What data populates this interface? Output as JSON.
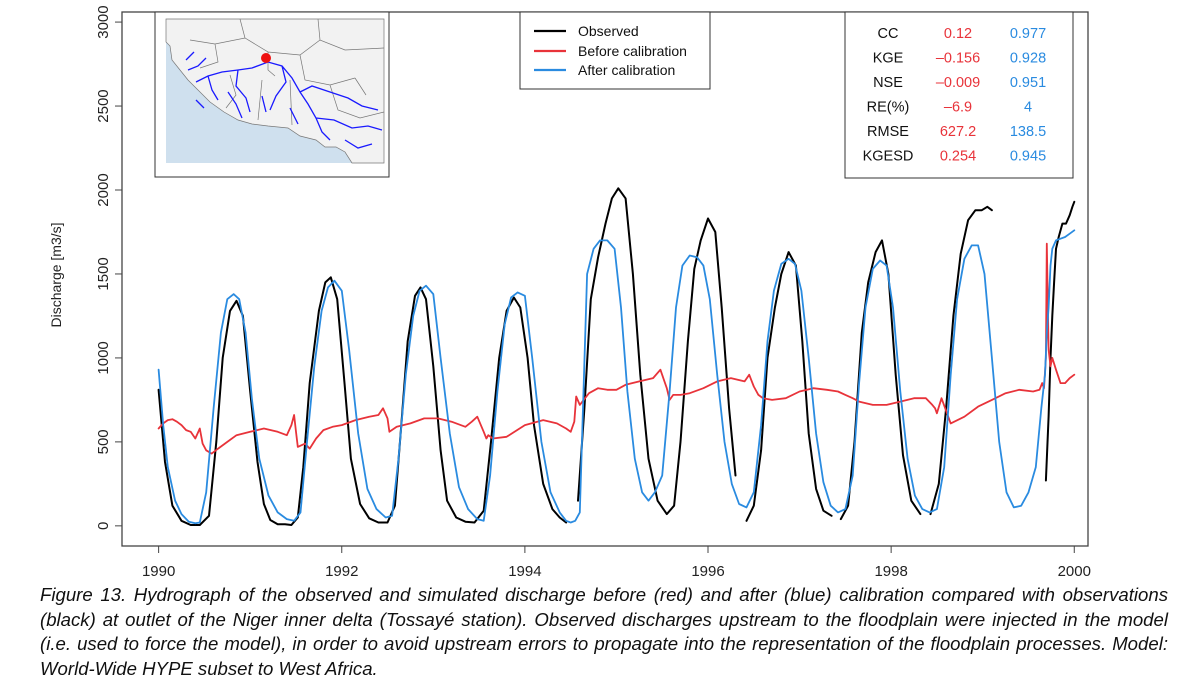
{
  "chart_data": {
    "type": "line",
    "title": "",
    "xlabel": "",
    "ylabel": "Discharge [m3/s]",
    "xlim": [
      1989.6,
      2000.15
    ],
    "ylim": [
      -120,
      3060
    ],
    "x_ticks": [
      "1990",
      "1992",
      "1994",
      "1996",
      "1998",
      "2000"
    ],
    "y_ticks": [
      "0",
      "500",
      "1000",
      "1500",
      "2000",
      "2500",
      "3000"
    ],
    "series": [
      {
        "name": "Observed",
        "color": "#000000",
        "x": [
          1990.0,
          1990.07,
          1990.15,
          1990.25,
          1990.35,
          1990.45,
          1990.55,
          1990.63,
          1990.7,
          1990.78,
          1990.85,
          1990.92,
          1991.0,
          1991.08,
          1991.15,
          1991.22,
          1991.3,
          1991.38,
          1991.45,
          1991.52,
          1991.58,
          1991.65,
          1991.75,
          1991.82,
          1991.88,
          1991.95,
          1992.03,
          1992.1,
          1992.2,
          1992.3,
          1992.4,
          1992.5,
          1992.58,
          1992.65,
          1992.72,
          1992.8,
          1992.86,
          1992.92,
          1993.0,
          1993.08,
          1993.15,
          1993.25,
          1993.35,
          1993.45,
          1993.55,
          1993.63,
          1993.72,
          1993.8,
          1993.88,
          1993.95,
          1994.03,
          1994.1,
          1994.2,
          1994.3,
          1994.38,
          1994.45,
          null,
          1994.58,
          1994.65,
          1994.72,
          1994.8,
          1994.88,
          1994.95,
          1995.02,
          1995.1,
          1995.18,
          1995.26,
          1995.35,
          1995.45,
          1995.55,
          1995.63,
          1995.7,
          1995.78,
          1995.85,
          1995.92,
          1996.0,
          1996.08,
          1996.15,
          1996.23,
          1996.3,
          null,
          1996.42,
          1996.5,
          1996.58,
          1996.65,
          1996.73,
          1996.8,
          1996.88,
          1996.96,
          1997.03,
          1997.1,
          1997.18,
          1997.26,
          1997.35,
          null,
          1997.45,
          1997.53,
          1997.6,
          1997.68,
          1997.75,
          1997.83,
          1997.9,
          1997.97,
          1998.05,
          1998.13,
          1998.22,
          1998.32,
          null,
          1998.43,
          1998.52,
          1998.6,
          1998.68,
          1998.76,
          1998.84,
          1998.92,
          1998.99,
          1999.05,
          1999.1,
          null,
          1999.69,
          1999.72,
          1999.74,
          1999.76,
          1999.78,
          1999.8,
          1999.83,
          1999.87,
          1999.91,
          1999.95,
          1999.98,
          2000.0
        ],
        "values": [
          810,
          380,
          120,
          30,
          5,
          5,
          60,
          500,
          1000,
          1280,
          1340,
          1250,
          800,
          380,
          130,
          35,
          10,
          10,
          5,
          50,
          350,
          850,
          1280,
          1450,
          1480,
          1350,
          850,
          400,
          130,
          45,
          20,
          20,
          120,
          600,
          1100,
          1370,
          1420,
          1350,
          950,
          450,
          150,
          50,
          25,
          20,
          90,
          500,
          1000,
          1280,
          1360,
          1300,
          1000,
          600,
          250,
          100,
          50,
          20,
          null,
          150,
          700,
          1350,
          1600,
          1800,
          1950,
          2010,
          1950,
          1500,
          900,
          400,
          150,
          70,
          120,
          500,
          1100,
          1530,
          1700,
          1830,
          1750,
          1300,
          700,
          300,
          null,
          30,
          120,
          450,
          1000,
          1300,
          1500,
          1630,
          1550,
          1100,
          550,
          220,
          90,
          60,
          null,
          40,
          120,
          500,
          1150,
          1450,
          1630,
          1700,
          1500,
          900,
          420,
          150,
          70,
          null,
          70,
          250,
          700,
          1250,
          1620,
          1820,
          1880,
          1880,
          1900,
          1880,
          null,
          270,
          650,
          1000,
          1250,
          1450,
          1650,
          1720,
          1800,
          1800,
          1850,
          1900,
          1930
        ]
      },
      {
        "name": "Before calibration",
        "color": "#e8333a",
        "x": [
          1990.0,
          1990.05,
          1990.1,
          1990.15,
          1990.2,
          1990.25,
          1990.3,
          1990.35,
          1990.4,
          1990.45,
          1990.48,
          1990.52,
          1990.58,
          1990.65,
          1990.75,
          1990.85,
          1991.0,
          1991.15,
          1991.3,
          1991.4,
          1991.45,
          1991.48,
          1991.5,
          1991.52,
          1991.6,
          1991.65,
          1991.72,
          1991.8,
          1991.9,
          1992.0,
          1992.15,
          1992.3,
          1992.4,
          1992.45,
          1992.5,
          1992.52,
          1992.6,
          1992.75,
          1992.9,
          1993.05,
          1993.2,
          1993.35,
          1993.42,
          1993.48,
          1993.55,
          1993.58,
          1993.6,
          1993.65,
          1993.8,
          1994.0,
          1994.2,
          1994.35,
          1994.45,
          1994.5,
          1994.54,
          1994.56,
          1994.6,
          1994.7,
          1994.8,
          1994.9,
          1995.0,
          1995.1,
          1995.25,
          1995.4,
          1995.48,
          1995.55,
          1995.58,
          1995.62,
          1995.7,
          1995.8,
          1995.95,
          1996.1,
          1996.25,
          1996.4,
          1996.45,
          1996.5,
          1996.55,
          1996.6,
          1996.7,
          1996.85,
          1997.0,
          1997.15,
          1997.3,
          1997.42,
          1997.5,
          1997.58,
          1997.65,
          1997.8,
          1997.95,
          1998.1,
          1998.25,
          1998.38,
          1998.45,
          1998.48,
          1998.5,
          1998.55,
          1998.65,
          1998.8,
          1998.95,
          1999.1,
          1999.25,
          1999.4,
          1999.55,
          1999.62,
          1999.65,
          1999.67,
          1999.69,
          1999.7,
          1999.72,
          1999.74,
          1999.76,
          1999.8,
          1999.85,
          1999.9,
          1999.95,
          2000.0
        ],
        "values": [
          580,
          610,
          630,
          635,
          620,
          600,
          570,
          560,
          520,
          580,
          490,
          450,
          430,
          460,
          500,
          540,
          560,
          580,
          560,
          540,
          600,
          660,
          560,
          470,
          490,
          460,
          520,
          570,
          590,
          600,
          630,
          650,
          660,
          700,
          640,
          560,
          590,
          610,
          640,
          640,
          620,
          590,
          620,
          650,
          560,
          520,
          540,
          520,
          530,
          600,
          630,
          610,
          580,
          560,
          620,
          770,
          720,
          790,
          820,
          810,
          810,
          840,
          860,
          880,
          930,
          820,
          750,
          780,
          780,
          790,
          820,
          860,
          880,
          860,
          900,
          830,
          780,
          760,
          750,
          760,
          800,
          820,
          810,
          800,
          780,
          760,
          740,
          720,
          720,
          740,
          760,
          760,
          720,
          700,
          670,
          760,
          610,
          650,
          710,
          750,
          790,
          810,
          800,
          810,
          850,
          820,
          1000,
          1680,
          1050,
          950,
          1000,
          930,
          850,
          850,
          880,
          900
        ]
      },
      {
        "name": "After calibration",
        "color": "#2a8be0",
        "x": [
          1990.0,
          1990.05,
          1990.1,
          1990.18,
          1990.25,
          1990.33,
          1990.4,
          1990.45,
          1990.52,
          1990.6,
          1990.68,
          1990.75,
          1990.82,
          1990.88,
          1990.95,
          1991.02,
          1991.1,
          1991.2,
          1991.3,
          1991.4,
          1991.48,
          1991.55,
          1991.62,
          1991.7,
          1991.78,
          1991.85,
          1991.92,
          1992.0,
          1992.08,
          1992.18,
          1992.28,
          1992.38,
          1992.48,
          1992.55,
          1992.62,
          1992.7,
          1992.78,
          1992.85,
          1992.92,
          1993.0,
          1993.08,
          1993.18,
          1993.28,
          1993.38,
          1993.48,
          1993.55,
          1993.62,
          1993.7,
          1993.78,
          1993.85,
          1993.92,
          1994.0,
          1994.08,
          1994.18,
          1994.28,
          1994.38,
          1994.45,
          1994.5,
          1994.55,
          1994.6,
          1994.68,
          1994.75,
          1994.82,
          1994.9,
          1994.98,
          1995.05,
          1995.12,
          1995.2,
          1995.28,
          1995.35,
          1995.42,
          1995.5,
          1995.58,
          1995.65,
          1995.72,
          1995.8,
          1995.88,
          1995.95,
          1996.02,
          1996.1,
          1996.18,
          1996.26,
          1996.34,
          1996.42,
          1996.5,
          1996.58,
          1996.65,
          1996.72,
          1996.8,
          1996.88,
          1996.95,
          1997.02,
          1997.1,
          1997.18,
          1997.26,
          1997.34,
          1997.42,
          1997.5,
          1997.58,
          1997.65,
          1997.72,
          1997.8,
          1997.88,
          1997.95,
          1998.02,
          1998.1,
          1998.18,
          1998.26,
          1998.34,
          1998.42,
          1998.5,
          1998.58,
          1998.65,
          1998.72,
          1998.8,
          1998.88,
          1998.95,
          1999.02,
          1999.1,
          1999.18,
          1999.26,
          1999.34,
          1999.42,
          1999.5,
          1999.58,
          1999.64,
          1999.68,
          1999.7,
          1999.72,
          1999.74,
          1999.76,
          1999.8,
          1999.85,
          1999.9,
          1999.95,
          2000.0
        ],
        "values": [
          930,
          600,
          350,
          150,
          70,
          25,
          15,
          20,
          200,
          700,
          1150,
          1350,
          1380,
          1350,
          1150,
          750,
          400,
          180,
          80,
          40,
          30,
          80,
          500,
          950,
          1280,
          1420,
          1460,
          1400,
          1050,
          550,
          220,
          100,
          50,
          60,
          400,
          900,
          1250,
          1400,
          1430,
          1380,
          1000,
          550,
          230,
          100,
          40,
          30,
          300,
          800,
          1200,
          1360,
          1390,
          1370,
          1000,
          500,
          200,
          80,
          30,
          20,
          30,
          80,
          1500,
          1650,
          1700,
          1700,
          1650,
          1300,
          800,
          400,
          200,
          150,
          200,
          300,
          800,
          1300,
          1550,
          1610,
          1600,
          1550,
          1350,
          900,
          500,
          250,
          130,
          110,
          200,
          600,
          1100,
          1400,
          1560,
          1590,
          1560,
          1400,
          1000,
          550,
          260,
          120,
          80,
          100,
          300,
          850,
          1300,
          1530,
          1580,
          1550,
          1300,
          800,
          400,
          180,
          100,
          80,
          100,
          350,
          900,
          1350,
          1590,
          1670,
          1670,
          1500,
          1000,
          500,
          200,
          110,
          120,
          200,
          350,
          700,
          900,
          1150,
          1300,
          1550,
          1650,
          1700,
          1710,
          1720,
          1740,
          1760
        ]
      }
    ]
  },
  "legend": {
    "items": [
      {
        "label": "Observed",
        "color": "#000000"
      },
      {
        "label": "Before calibration",
        "color": "#e8333a"
      },
      {
        "label": "After calibration",
        "color": "#2a8be0"
      }
    ]
  },
  "stats_table": {
    "before_color": "#e8333a",
    "after_color": "#2a8be0",
    "rows": [
      {
        "metric": "CC",
        "before": "0.12",
        "after": "0.977"
      },
      {
        "metric": "KGE",
        "before": "–0.156",
        "after": "0.928"
      },
      {
        "metric": "NSE",
        "before": "–0.009",
        "after": "0.951"
      },
      {
        "metric": "RE(%)",
        "before": "–6.9",
        "after": "4"
      },
      {
        "metric": "RMSE",
        "before": "627.2",
        "after": "138.5"
      },
      {
        "metric": "KGESD",
        "before": "0.254",
        "after": "0.945"
      }
    ]
  },
  "inset_map": {
    "ocean_color": "#cfe0ee",
    "land_color": "#f2f2f2",
    "river_color": "#1a1aff",
    "marker_color": "#ee1111"
  },
  "caption": {
    "text": "Figure 13. Hydrograph of the observed and simulated discharge before (red) and after (blue) calibration compared with observations (black) at outlet of the Niger inner delta (Tossayé station). Observed discharges upstream to the floodplain were injected in the model (i.e. used to force the model), in order to avoid upstream errors to propagate into the representation of the floodplain processes. Model: World-Wide HYPE subset to West Africa."
  }
}
